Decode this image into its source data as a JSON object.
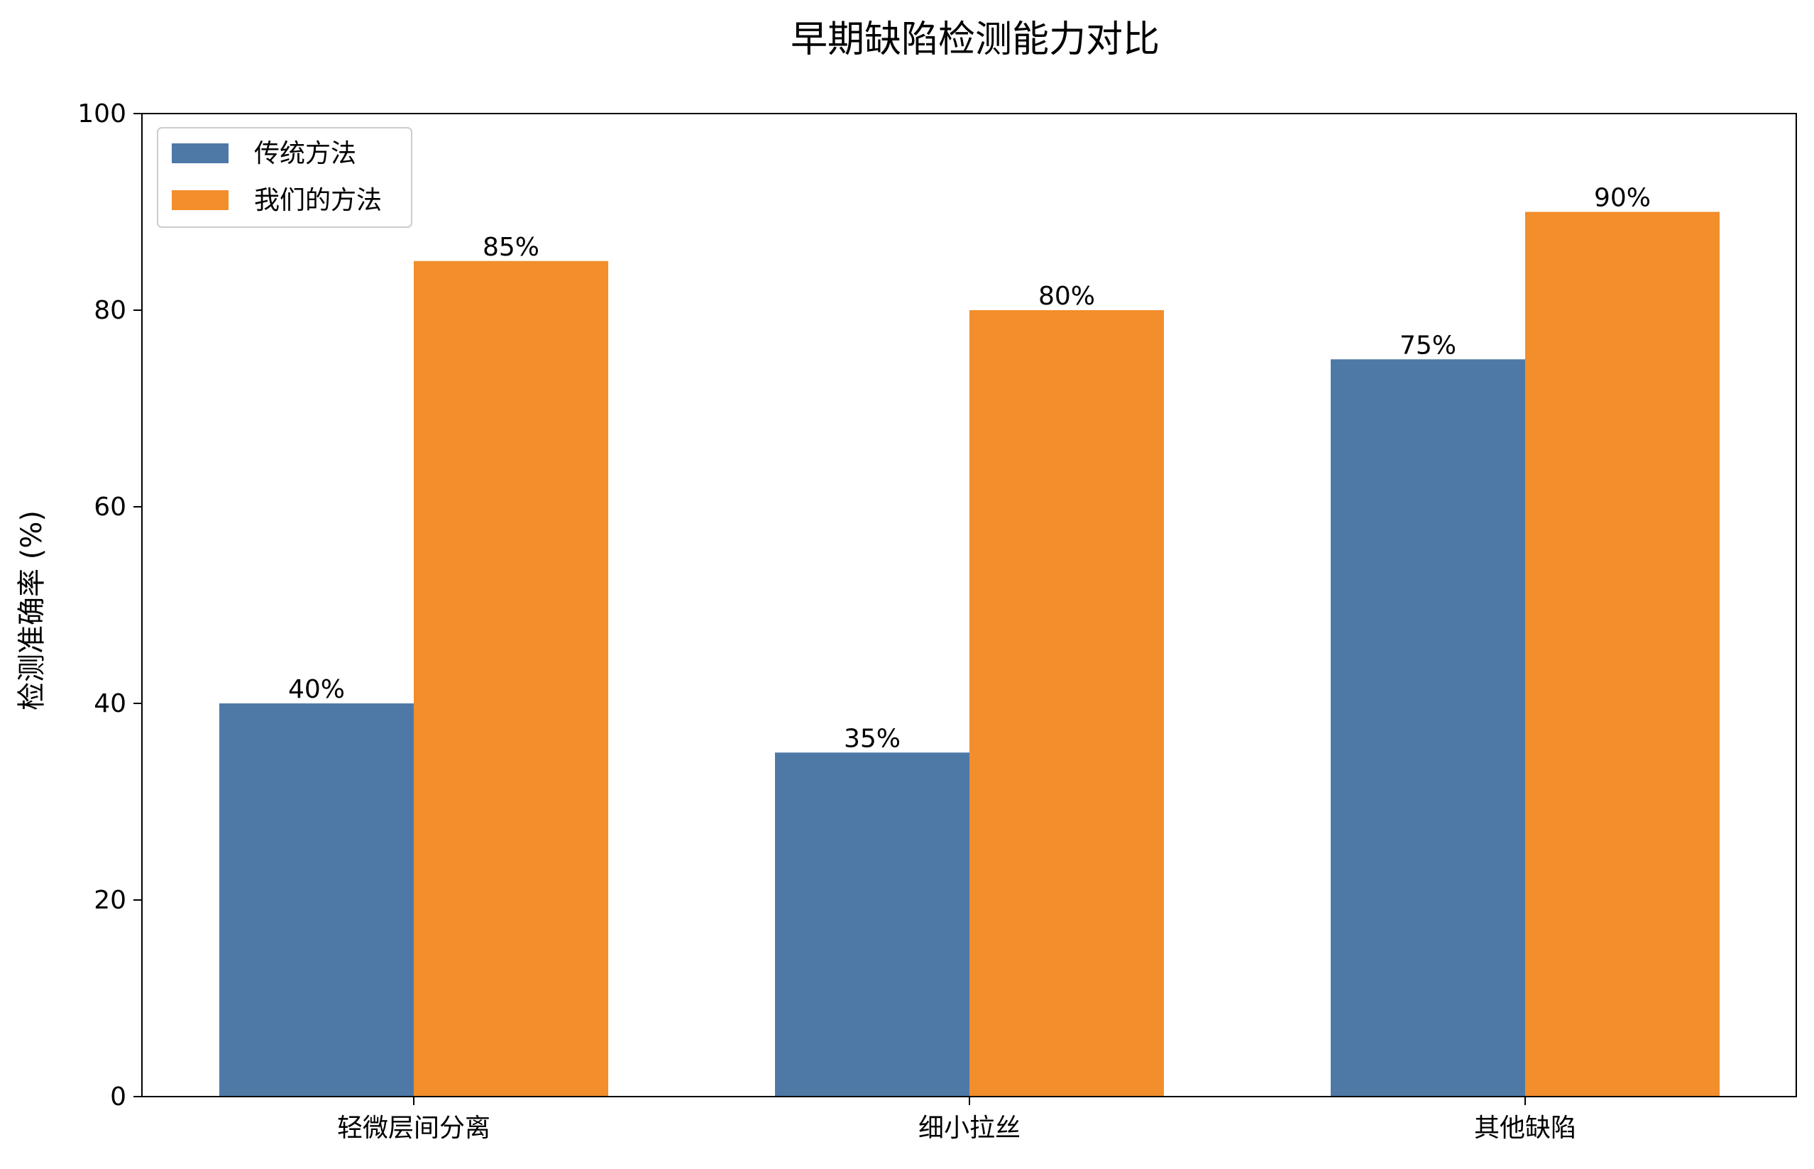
{
  "chart_data": {
    "type": "bar",
    "title": "早期缺陷检测能力对比",
    "xlabel": "",
    "ylabel": "检测准确率 (%)",
    "ylim": [
      0,
      100
    ],
    "yticks": [
      0,
      20,
      40,
      60,
      80,
      100
    ],
    "categories": [
      "轻微层间分离",
      "细小拉丝",
      "其他缺陷"
    ],
    "series": [
      {
        "name": "传统方法",
        "values": [
          40,
          35,
          75
        ],
        "labels": [
          "40%",
          "35%",
          "75%"
        ],
        "color": "#4e79a7"
      },
      {
        "name": "我们的方法",
        "values": [
          85,
          80,
          90
        ],
        "labels": [
          "85%",
          "80%",
          "90%"
        ],
        "color": "#f28e2b"
      }
    ],
    "legend": "upper-left",
    "grid": false
  }
}
